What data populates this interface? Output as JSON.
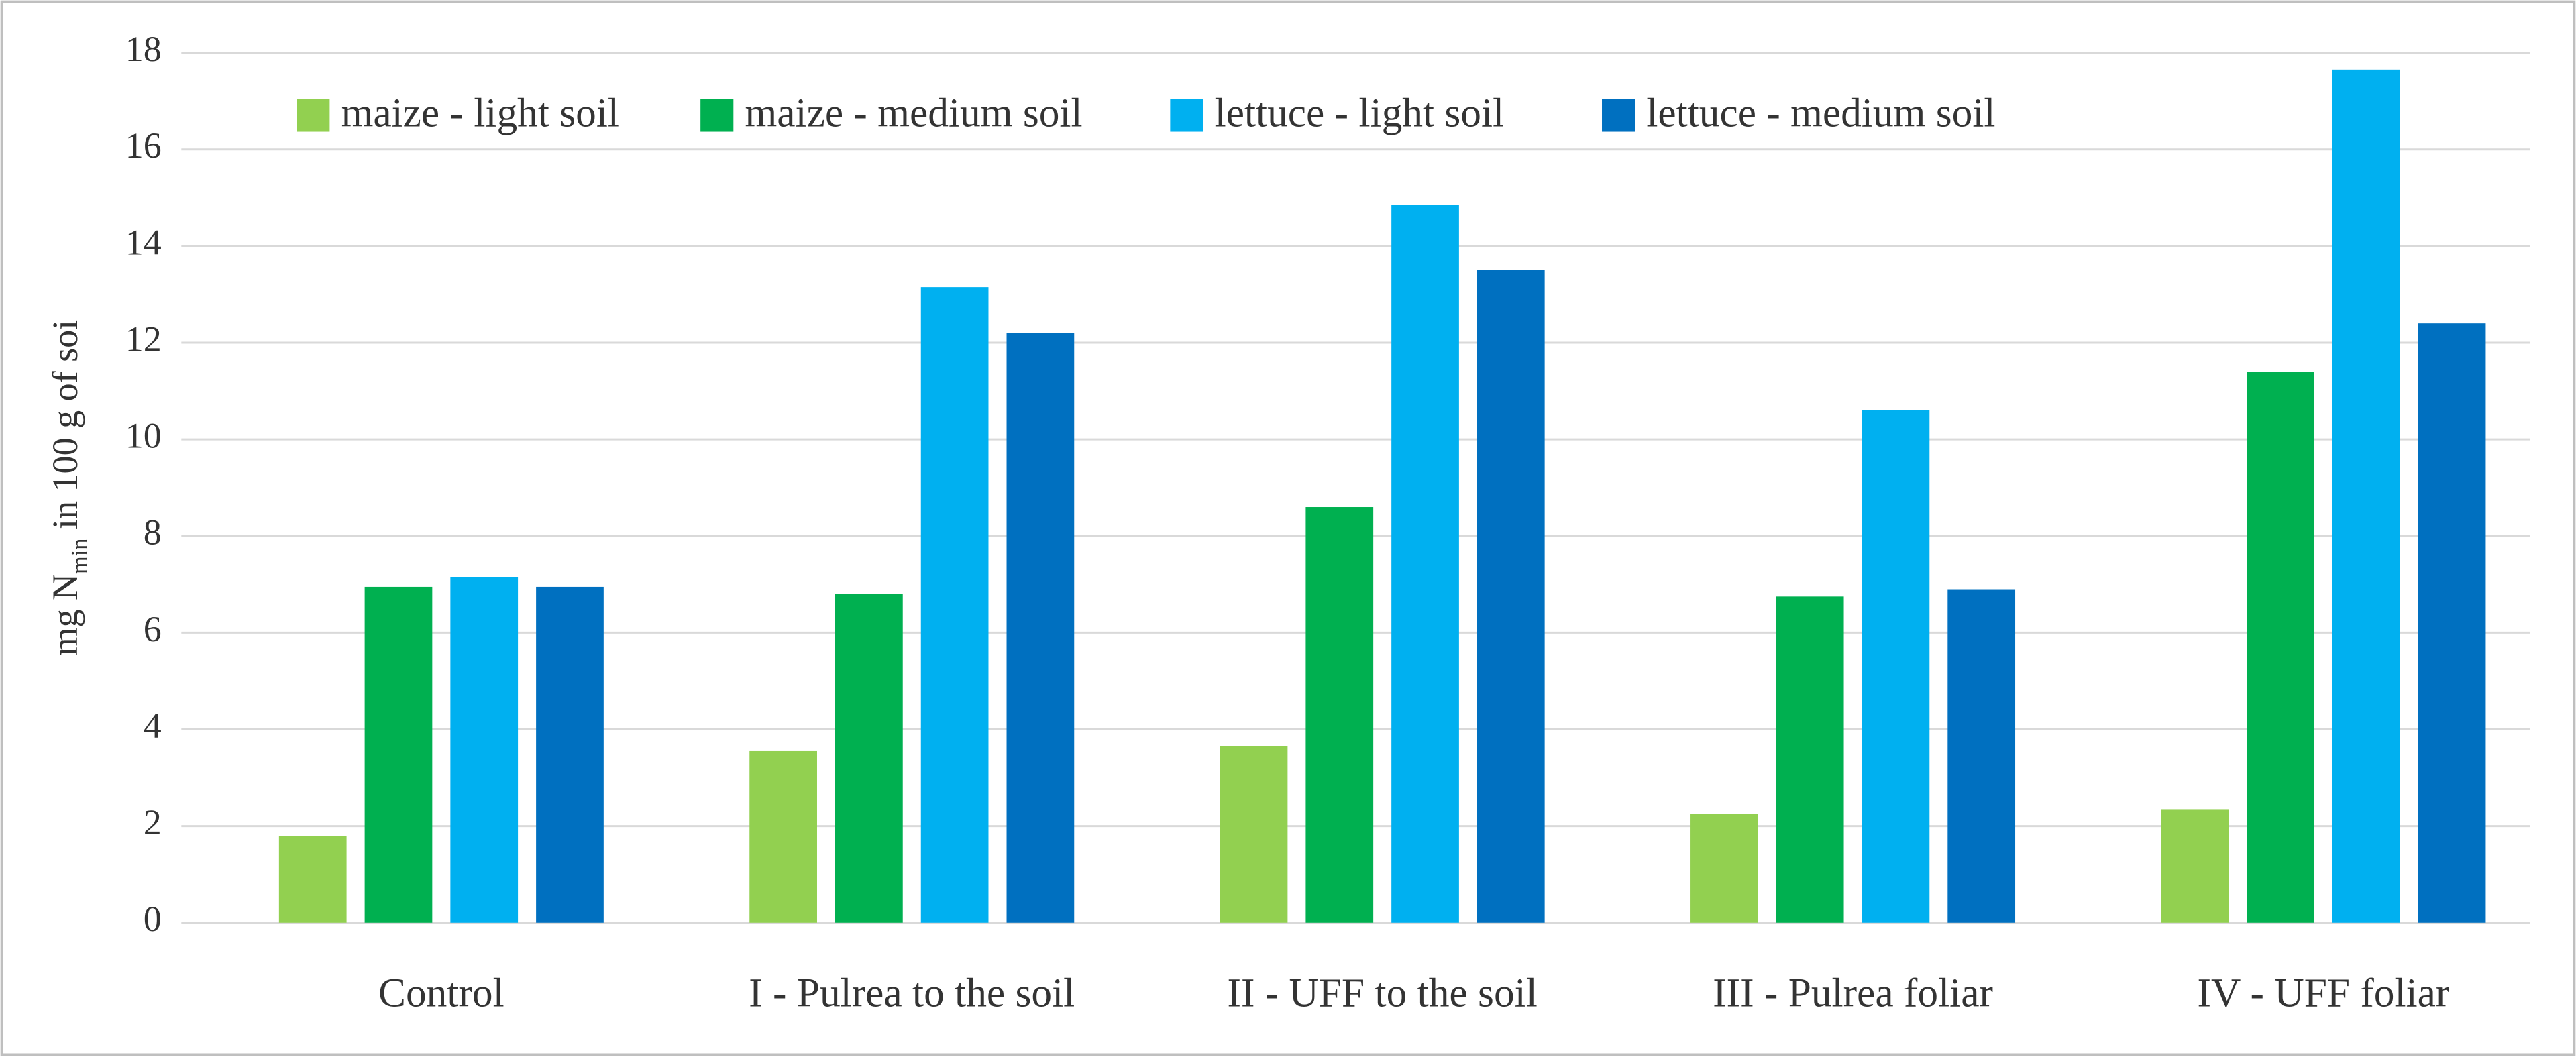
{
  "chart_data": {
    "type": "bar",
    "y_label": [
      "mg N",
      "min",
      " in 100 g of soi"
    ],
    "categories": [
      "Control",
      "I - Pulrea to the soil",
      "II - UFF to the soil",
      "III - Pulrea foliar",
      "IV - UFF foliar"
    ],
    "series": [
      {
        "name": "maize - light soil",
        "color": "#92d050",
        "values": [
          1.8,
          3.55,
          3.65,
          2.25,
          2.35
        ]
      },
      {
        "name": "maize - medium soil",
        "color": "#00b050",
        "values": [
          6.95,
          6.8,
          8.6,
          6.75,
          11.4
        ]
      },
      {
        "name": "lettuce - light soil",
        "color": "#00b0f0",
        "values": [
          7.15,
          13.15,
          14.85,
          10.6,
          17.65
        ]
      },
      {
        "name": "lettuce - medium soil",
        "color": "#0070c0",
        "values": [
          6.95,
          12.2,
          13.5,
          6.9,
          12.4
        ]
      }
    ],
    "ylim": [
      0,
      18
    ],
    "yticks": [
      0,
      2,
      4,
      6,
      8,
      10,
      12,
      14,
      16,
      18
    ],
    "grid": true,
    "legend": "top"
  }
}
